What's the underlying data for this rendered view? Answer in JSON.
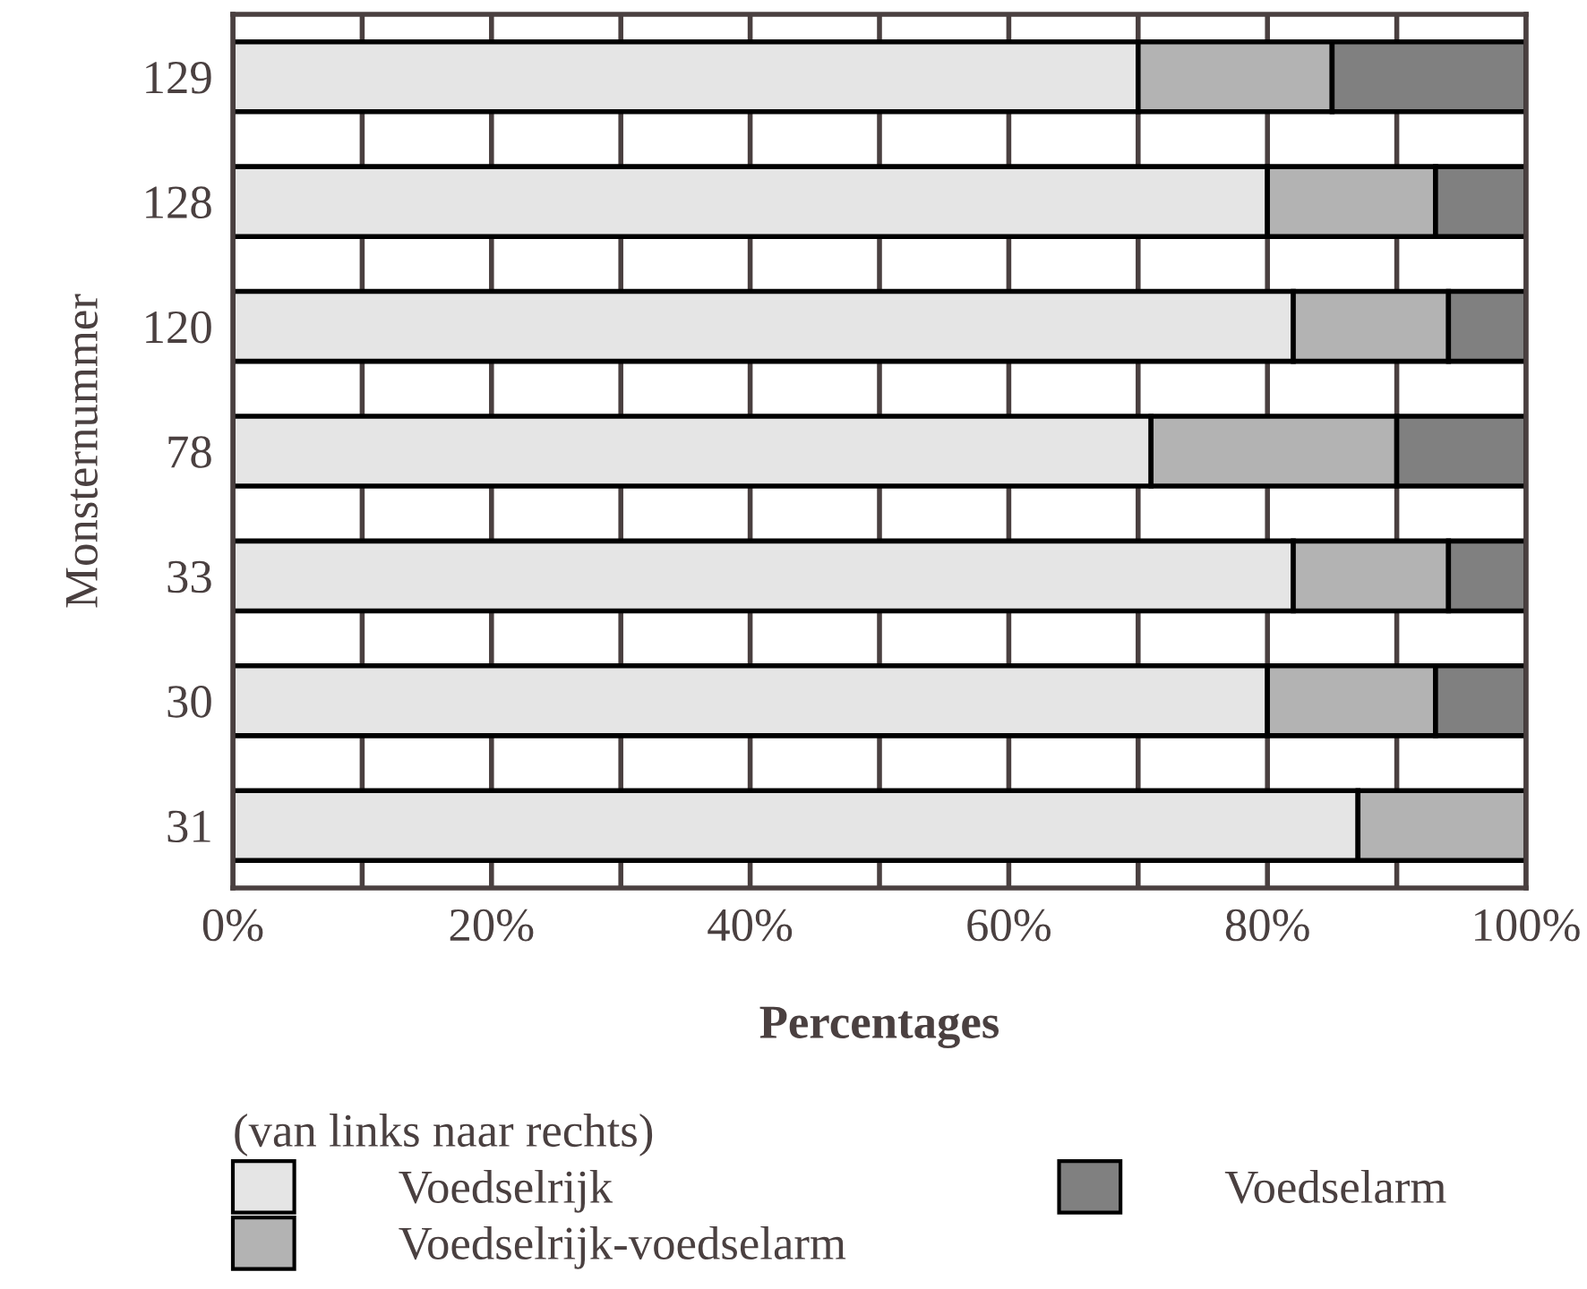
{
  "chart_data": {
    "type": "bar",
    "orientation": "horizontal",
    "stacked": true,
    "categories": [
      "129",
      "128",
      "120",
      "78",
      "33",
      "30",
      "31"
    ],
    "series": [
      {
        "name": "Voedselrijk",
        "color": "#e5e5e5",
        "values": [
          70,
          80,
          82,
          71,
          82,
          80,
          87
        ]
      },
      {
        "name": "Voedselrijk-voedselarm",
        "color": "#b3b3b3",
        "values": [
          15,
          13,
          12,
          19,
          12,
          13,
          13
        ]
      },
      {
        "name": "Voedselarm",
        "color": "#808080",
        "values": [
          15,
          7,
          6,
          10,
          6,
          7,
          null
        ]
      }
    ],
    "xlabel": "Percentages",
    "ylabel": "Monsternummer",
    "legend_title": "(van links naar rechts)",
    "xlim": [
      0,
      100
    ],
    "xticks": [
      {
        "value": 0,
        "label": "0%"
      },
      {
        "value": 10,
        "label": null
      },
      {
        "value": 20,
        "label": "20%"
      },
      {
        "value": 30,
        "label": null
      },
      {
        "value": 40,
        "label": "40%"
      },
      {
        "value": 50,
        "label": null
      },
      {
        "value": 60,
        "label": "60%"
      },
      {
        "value": 70,
        "label": null
      },
      {
        "value": 80,
        "label": "80%"
      },
      {
        "value": 90,
        "label": null
      },
      {
        "value": 100,
        "label": "100%"
      }
    ],
    "grid": "x",
    "legend": "bottom"
  }
}
